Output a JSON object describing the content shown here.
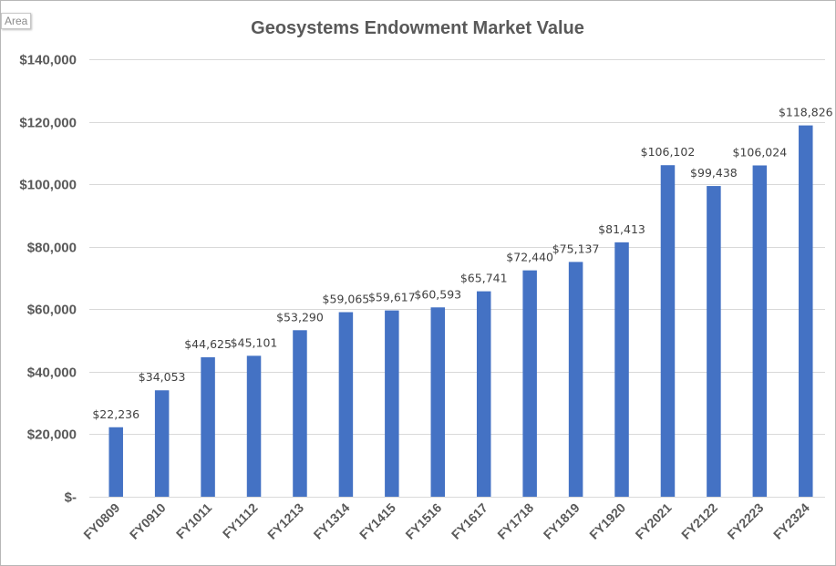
{
  "area_tag": "Area",
  "chart_data": {
    "type": "bar",
    "title": "Geosystems Endowment Market Value",
    "xlabel": "",
    "ylabel": "",
    "ylim": [
      0,
      140000
    ],
    "grid": true,
    "legend": "none",
    "bar_color": "#4472C4",
    "categories": [
      "FY0809",
      "FY0910",
      "FY1011",
      "FY1112",
      "FY1213",
      "FY1314",
      "FY1415",
      "FY1516",
      "FY1617",
      "FY1718",
      "FY1819",
      "FY1920",
      "FY2021",
      "FY2122",
      "FY2223",
      "FY2324"
    ],
    "values": [
      22236,
      34053,
      44625,
      45101,
      53290,
      59065,
      59617,
      60593,
      65741,
      72440,
      75137,
      81413,
      106102,
      99438,
      106024,
      118826
    ],
    "data_labels": [
      "$22,236",
      "$34,053",
      "$44,625",
      "$45,101",
      "$53,290",
      "$59,065",
      "$59,617",
      "$60,593",
      "$65,741",
      "$72,440",
      "$75,137",
      "$81,413",
      "$106,102",
      "$99,438",
      "$106,024",
      "$118,826"
    ],
    "y_ticks": [
      0,
      20000,
      40000,
      60000,
      80000,
      100000,
      120000,
      140000
    ],
    "y_tick_labels": [
      "$-",
      "$20,000",
      "$40,000",
      "$60,000",
      "$80,000",
      "$100,000",
      "$120,000",
      "$140,000"
    ]
  }
}
